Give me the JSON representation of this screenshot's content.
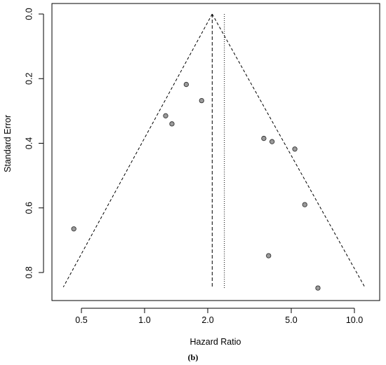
{
  "chart_data": {
    "type": "scatter",
    "subtype": "funnel-plot",
    "title": "",
    "xlabel": "Hazard Ratio",
    "ylabel": "Standard Error",
    "panel_label": "(b)",
    "x_scale": "log",
    "y_inverted": true,
    "xlim": [
      0.37,
      12.5
    ],
    "ylim": [
      0.0,
      0.87
    ],
    "x_ticks": [
      0.5,
      1.0,
      2.0,
      5.0,
      10.0
    ],
    "x_tick_labels": [
      "0.5",
      "1.0",
      "2.0",
      "5.0",
      "10.0"
    ],
    "y_ticks": [
      0.0,
      0.2,
      0.4,
      0.6,
      0.8
    ],
    "y_tick_labels": [
      "0.0",
      "0.2",
      "0.4",
      "0.6",
      "0.8"
    ],
    "funnel": {
      "apex_hr": 2.1,
      "se_max": 0.845,
      "left_bottom_hr": 0.41,
      "right_bottom_hr": 11.2
    },
    "reference_lines": [
      {
        "hr": 2.1,
        "style": "dashed"
      },
      {
        "hr": 2.4,
        "style": "dotted"
      }
    ],
    "points": [
      {
        "hr": 0.46,
        "se": 0.665
      },
      {
        "hr": 1.26,
        "se": 0.315
      },
      {
        "hr": 1.35,
        "se": 0.34
      },
      {
        "hr": 1.58,
        "se": 0.218
      },
      {
        "hr": 1.87,
        "se": 0.268
      },
      {
        "hr": 3.7,
        "se": 0.385
      },
      {
        "hr": 4.05,
        "se": 0.395
      },
      {
        "hr": 5.2,
        "se": 0.418
      },
      {
        "hr": 5.8,
        "se": 0.59
      },
      {
        "hr": 3.9,
        "se": 0.748
      },
      {
        "hr": 6.7,
        "se": 0.848
      }
    ],
    "colors": {
      "point_fill": "#9a9a9a",
      "point_stroke": "#333333",
      "line": "#000000"
    }
  }
}
